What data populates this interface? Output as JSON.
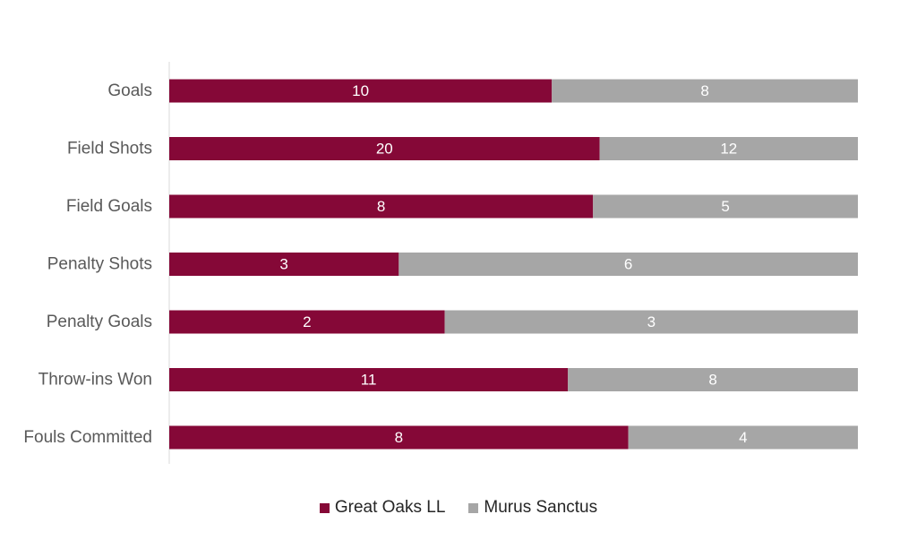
{
  "chart_data": {
    "type": "bar",
    "orientation": "horizontal",
    "stacking": "percent",
    "categories": [
      "Goals",
      "Field Shots",
      "Field Goals",
      "Penalty Shots",
      "Penalty Goals",
      "Throw-ins Won",
      "Fouls Committed"
    ],
    "series": [
      {
        "name": "Great Oaks LL",
        "color": "#850837",
        "values": [
          10,
          20,
          8,
          3,
          2,
          11,
          8
        ]
      },
      {
        "name": "Murus Sanctus",
        "color": "#a6a6a6",
        "values": [
          8,
          12,
          5,
          6,
          3,
          8,
          4
        ]
      }
    ],
    "xlim": [
      0,
      1
    ],
    "grid": false,
    "legend_position": "bottom"
  }
}
